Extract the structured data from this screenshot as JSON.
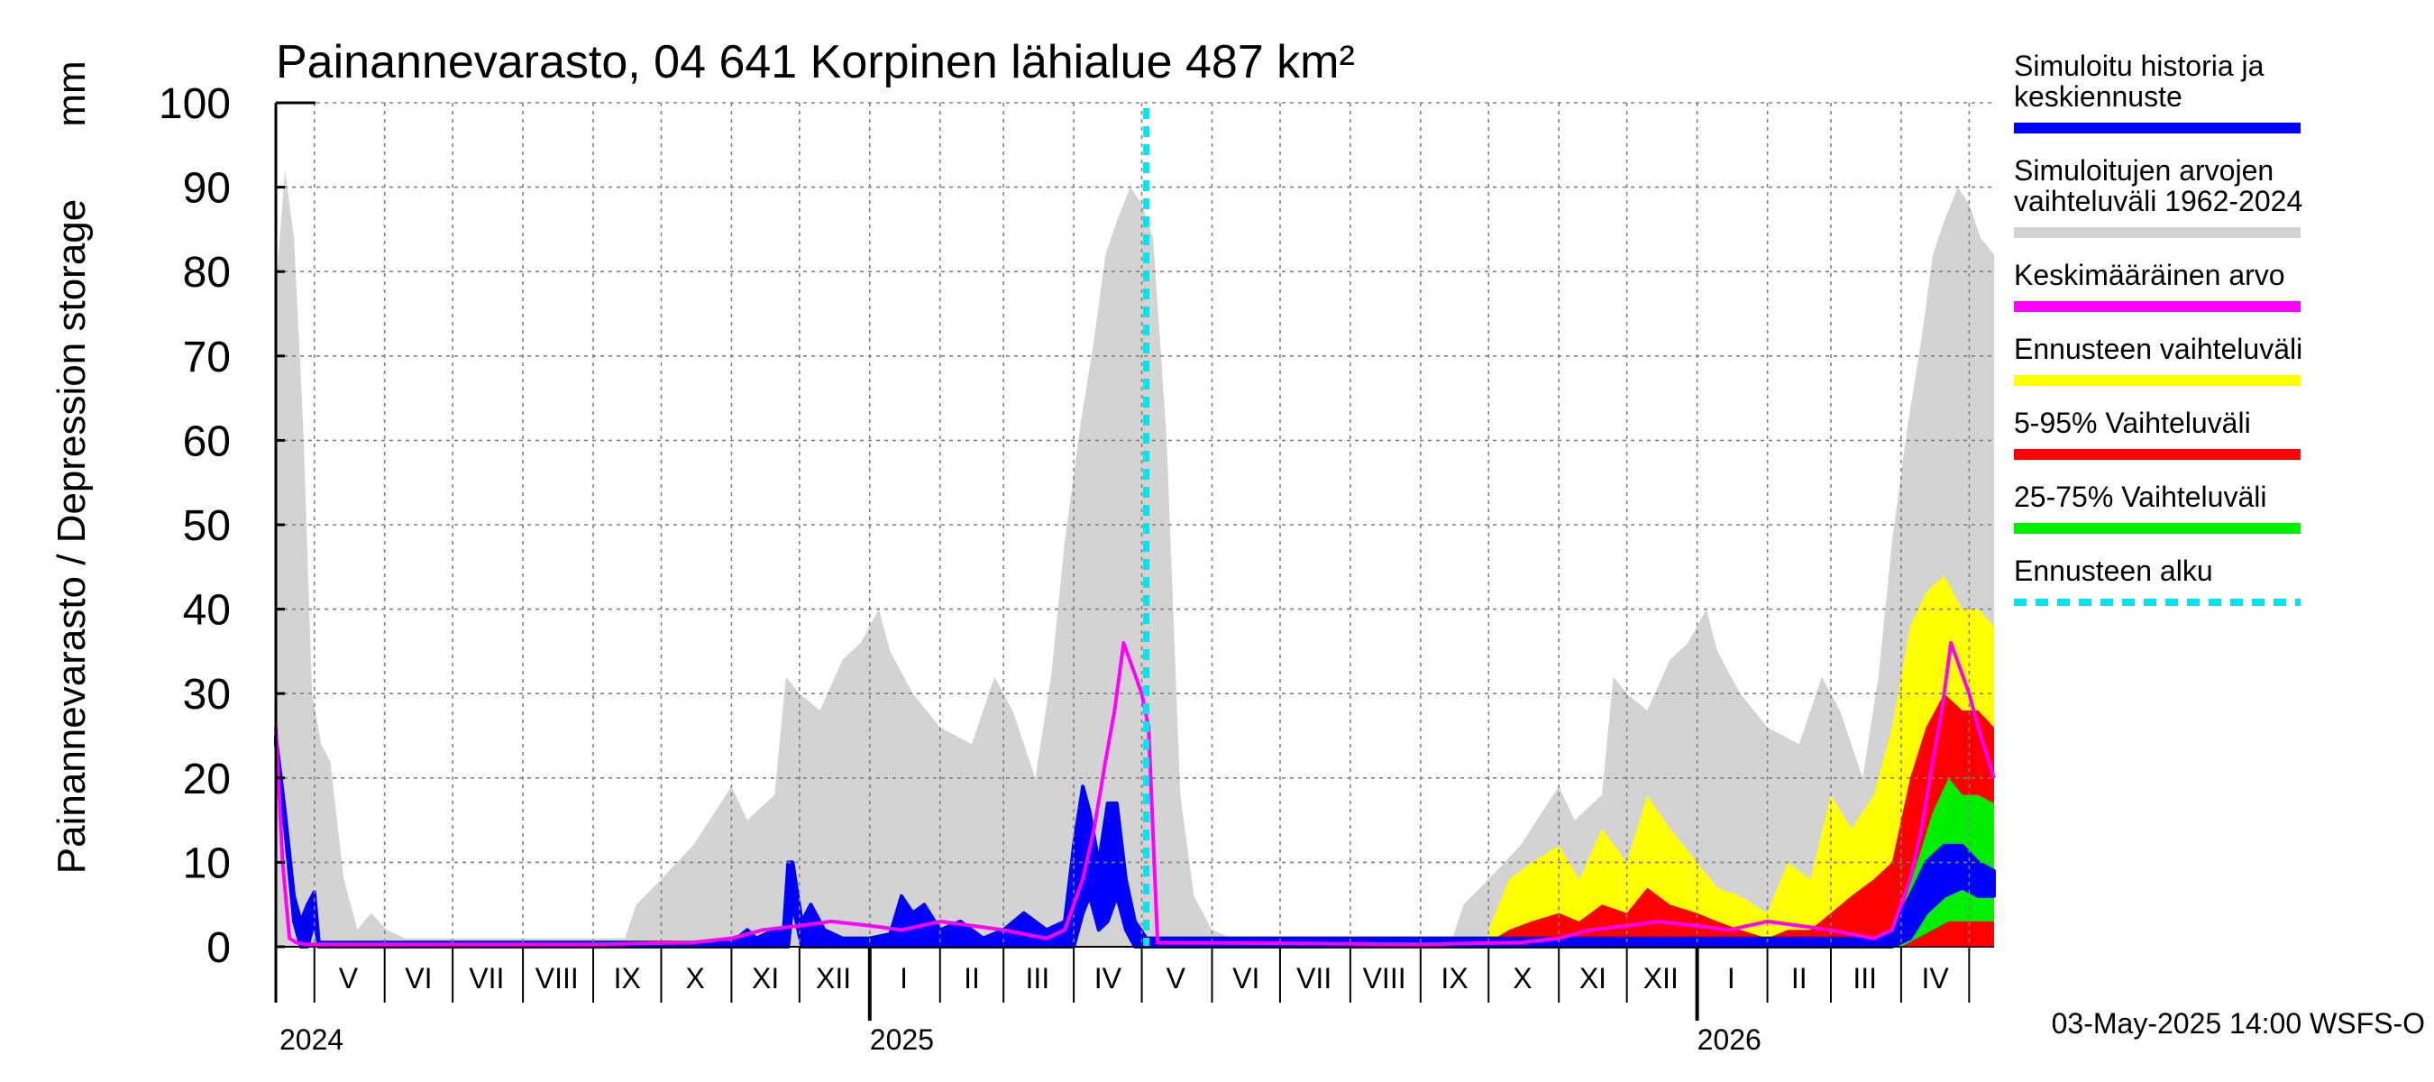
{
  "title": "Painannevarasto, 04 641 Korpinen lähialue 487 km²",
  "ylabel": "Painannevarasto / Depression storage",
  "yunit": "mm",
  "footer": "03-May-2025 14:00 WSFS-O",
  "legend": [
    {
      "lines": [
        "Simuloitu historia ja",
        "keskiennuste"
      ],
      "color": "#0000ff",
      "style": "solid"
    },
    {
      "lines": [
        "Simuloitujen arvojen",
        "vaihteluväli 1962-2024"
      ],
      "color": "#d3d3d3",
      "style": "solid"
    },
    {
      "lines": [
        "Keskimääräinen arvo"
      ],
      "color": "#ff00ff",
      "style": "solid"
    },
    {
      "lines": [
        "Ennusteen vaihteluväli"
      ],
      "color": "#ffff00",
      "style": "solid"
    },
    {
      "lines": [
        "5-95% Vaihteluväli"
      ],
      "color": "#ff0000",
      "style": "solid"
    },
    {
      "lines": [
        "25-75% Vaihteluväli"
      ],
      "color": "#00ee00",
      "style": "solid"
    },
    {
      "lines": [
        "Ennusteen alku"
      ],
      "color": "#00e5ee",
      "style": "dashed"
    }
  ],
  "chart_data": {
    "type": "area",
    "ylim": [
      0,
      100
    ],
    "yticks": [
      0,
      10,
      20,
      30,
      40,
      50,
      60,
      70,
      80,
      90,
      100
    ],
    "xlim": [
      "2024-04-14",
      "2026-05-12"
    ],
    "month_labels": [
      {
        "label": "V",
        "date": "2024-05-16"
      },
      {
        "label": "VI",
        "date": "2024-06-16"
      },
      {
        "label": "VII",
        "date": "2024-07-16"
      },
      {
        "label": "VIII",
        "date": "2024-08-16"
      },
      {
        "label": "IX",
        "date": "2024-09-16"
      },
      {
        "label": "X",
        "date": "2024-10-16"
      },
      {
        "label": "XI",
        "date": "2024-11-16"
      },
      {
        "label": "XII",
        "date": "2024-12-16"
      },
      {
        "label": "I",
        "date": "2025-01-16"
      },
      {
        "label": "II",
        "date": "2025-02-15"
      },
      {
        "label": "III",
        "date": "2025-03-16"
      },
      {
        "label": "IV",
        "date": "2025-04-16"
      },
      {
        "label": "V",
        "date": "2025-05-16"
      },
      {
        "label": "VI",
        "date": "2025-06-16"
      },
      {
        "label": "VII",
        "date": "2025-07-16"
      },
      {
        "label": "VIII",
        "date": "2025-08-16"
      },
      {
        "label": "IX",
        "date": "2025-09-16"
      },
      {
        "label": "X",
        "date": "2025-10-16"
      },
      {
        "label": "XI",
        "date": "2025-11-16"
      },
      {
        "label": "XII",
        "date": "2025-12-16"
      },
      {
        "label": "I",
        "date": "2026-01-16"
      },
      {
        "label": "II",
        "date": "2026-02-15"
      },
      {
        "label": "III",
        "date": "2026-03-16"
      },
      {
        "label": "IV",
        "date": "2026-04-16"
      }
    ],
    "month_boundaries": [
      "2024-05-01",
      "2024-06-01",
      "2024-07-01",
      "2024-08-01",
      "2024-09-01",
      "2024-10-01",
      "2024-11-01",
      "2024-12-01",
      "2025-01-01",
      "2025-02-01",
      "2025-03-01",
      "2025-04-01",
      "2025-05-01",
      "2025-06-01",
      "2025-07-01",
      "2025-08-01",
      "2025-09-01",
      "2025-10-01",
      "2025-11-01",
      "2025-12-01",
      "2026-01-01",
      "2026-02-01",
      "2026-03-01",
      "2026-04-01",
      "2026-05-01"
    ],
    "year_labels": [
      {
        "label": "2024",
        "date": "2024-04-14"
      },
      {
        "label": "2025",
        "date": "2025-01-01"
      },
      {
        "label": "2026",
        "date": "2026-01-01"
      }
    ],
    "forecast_start": "2025-05-03",
    "series": [
      {
        "name": "Simuloitujen arvojen vaihteluväli 1962-2024",
        "kind": "band",
        "color": "#d3d3d3",
        "x": [
          "2024-04-14",
          "2024-04-18",
          "2024-04-22",
          "2024-04-26",
          "2024-04-30",
          "2024-05-04",
          "2024-05-08",
          "2024-05-14",
          "2024-05-20",
          "2024-05-26",
          "2024-06-02",
          "2024-06-10",
          "2024-09-15",
          "2024-09-20",
          "2024-10-01",
          "2024-10-15",
          "2024-11-01",
          "2024-11-08",
          "2024-11-20",
          "2024-11-25",
          "2024-12-01",
          "2024-12-10",
          "2024-12-20",
          "2024-12-28",
          "2025-01-05",
          "2025-01-10",
          "2025-01-20",
          "2025-02-01",
          "2025-02-15",
          "2025-02-25",
          "2025-03-05",
          "2025-03-15",
          "2025-03-22",
          "2025-03-28",
          "2025-04-04",
          "2025-04-10",
          "2025-04-15",
          "2025-04-20",
          "2025-04-26",
          "2025-05-01",
          "2025-05-06",
          "2025-05-12",
          "2025-05-18",
          "2025-05-24",
          "2025-06-01",
          "2025-06-10",
          "2025-09-15",
          "2025-09-20",
          "2025-10-01",
          "2025-10-15",
          "2025-11-01",
          "2025-11-08",
          "2025-11-20",
          "2025-11-25",
          "2025-12-01",
          "2025-12-10",
          "2025-12-20",
          "2025-12-28",
          "2026-01-05",
          "2026-01-10",
          "2026-01-20",
          "2026-02-01",
          "2026-02-15",
          "2026-02-25",
          "2026-03-05",
          "2026-03-15",
          "2026-03-22",
          "2026-03-28",
          "2026-04-04",
          "2026-04-10",
          "2026-04-15",
          "2026-04-20",
          "2026-04-26",
          "2026-05-01",
          "2026-05-06",
          "2026-05-12"
        ],
        "upper": [
          78,
          92,
          84,
          62,
          30,
          24,
          22,
          8,
          2,
          4,
          2,
          1,
          1,
          5,
          8,
          12,
          19,
          15,
          18,
          32,
          30,
          28,
          34,
          36,
          40,
          35,
          30,
          26,
          24,
          32,
          28,
          20,
          32,
          48,
          62,
          72,
          82,
          86,
          90,
          88,
          84,
          60,
          18,
          6,
          2,
          1,
          1,
          5,
          8,
          12,
          19,
          15,
          18,
          32,
          30,
          28,
          34,
          36,
          40,
          35,
          30,
          26,
          24,
          32,
          28,
          20,
          32,
          48,
          62,
          72,
          82,
          86,
          90,
          88,
          84,
          82
        ],
        "lower": [
          0,
          0,
          0,
          0,
          0,
          0,
          0,
          0,
          0,
          0,
          0,
          0,
          0,
          0,
          0,
          0,
          0,
          0,
          0,
          0,
          0,
          0,
          0,
          0,
          0,
          0,
          0,
          0,
          0,
          0,
          0,
          0,
          0,
          0,
          0,
          0,
          0,
          0,
          0,
          0,
          0,
          0,
          0,
          0,
          0,
          0,
          0,
          0,
          0,
          0,
          0,
          0,
          0,
          0,
          0,
          0,
          0,
          0,
          0,
          0,
          0,
          0,
          0,
          0,
          0,
          0,
          0,
          0,
          0,
          0,
          0,
          0,
          0,
          0,
          0,
          0
        ]
      },
      {
        "name": "Ennusteen vaihteluväli",
        "kind": "band",
        "color": "#ffff00",
        "x": [
          "2025-10-01",
          "2025-10-10",
          "2025-10-20",
          "2025-11-01",
          "2025-11-10",
          "2025-11-20",
          "2025-12-01",
          "2025-12-10",
          "2025-12-20",
          "2026-01-01",
          "2026-01-10",
          "2026-01-20",
          "2026-02-01",
          "2026-02-10",
          "2026-02-20",
          "2026-03-01",
          "2026-03-10",
          "2026-03-20",
          "2026-03-28",
          "2026-04-05",
          "2026-04-12",
          "2026-04-20",
          "2026-04-28",
          "2026-05-05",
          "2026-05-12"
        ],
        "upper": [
          2,
          8,
          10,
          12,
          8,
          14,
          10,
          18,
          14,
          10,
          7,
          6,
          4,
          10,
          8,
          18,
          14,
          18,
          26,
          38,
          42,
          44,
          40,
          40,
          38
        ],
        "lower": [
          0,
          0,
          0,
          0,
          0,
          0,
          0,
          0,
          0,
          0,
          0,
          0,
          0,
          0,
          0,
          0,
          0,
          0,
          0,
          0,
          0,
          0,
          0,
          0,
          0
        ]
      },
      {
        "name": "5-95% Vaihteluväli",
        "kind": "band",
        "color": "#ff0000",
        "x": [
          "2025-10-01",
          "2025-10-10",
          "2025-10-20",
          "2025-11-01",
          "2025-11-10",
          "2025-11-20",
          "2025-12-01",
          "2025-12-10",
          "2025-12-20",
          "2026-01-01",
          "2026-01-10",
          "2026-01-20",
          "2026-02-01",
          "2026-02-10",
          "2026-02-20",
          "2026-03-01",
          "2026-03-10",
          "2026-03-20",
          "2026-03-28",
          "2026-04-05",
          "2026-04-12",
          "2026-04-20",
          "2026-04-28",
          "2026-05-05",
          "2026-05-12"
        ],
        "upper": [
          0.5,
          2,
          3,
          4,
          3,
          5,
          4,
          7,
          5,
          4,
          3,
          2,
          1,
          2,
          2,
          4,
          6,
          8,
          10,
          20,
          26,
          30,
          28,
          28,
          26
        ],
        "lower": [
          0,
          0,
          0,
          0,
          0,
          0,
          0,
          0,
          0,
          0,
          0,
          0,
          0,
          0,
          0,
          0,
          0,
          0,
          0,
          0,
          0,
          0,
          0,
          0,
          0
        ]
      },
      {
        "name": "25-75% Vaihteluväli",
        "kind": "band",
        "color": "#00ee00",
        "x": [
          "2026-03-25",
          "2026-04-01",
          "2026-04-08",
          "2026-04-15",
          "2026-04-22",
          "2026-04-28",
          "2026-05-05",
          "2026-05-12"
        ],
        "upper": [
          1,
          4,
          10,
          16,
          20,
          18,
          18,
          17
        ],
        "lower": [
          0,
          0,
          1,
          2,
          3,
          3,
          3,
          3
        ]
      },
      {
        "name": "Simuloitu historia ja keskiennuste",
        "kind": "band",
        "color": "#0000ff",
        "x": [
          "2024-04-14",
          "2024-04-18",
          "2024-04-22",
          "2024-04-25",
          "2024-04-28",
          "2024-05-01",
          "2024-05-03",
          "2024-05-06",
          "2024-05-10",
          "2024-11-01",
          "2024-11-08",
          "2024-11-12",
          "2024-11-20",
          "2024-11-24",
          "2024-11-26",
          "2024-11-28",
          "2024-12-02",
          "2024-12-06",
          "2024-12-12",
          "2024-12-20",
          "2025-01-01",
          "2025-01-10",
          "2025-01-15",
          "2025-01-20",
          "2025-01-25",
          "2025-02-01",
          "2025-02-10",
          "2025-02-20",
          "2025-03-01",
          "2025-03-10",
          "2025-03-20",
          "2025-03-28",
          "2025-04-01",
          "2025-04-05",
          "2025-04-08",
          "2025-04-12",
          "2025-04-16",
          "2025-04-20",
          "2025-04-24",
          "2025-04-28",
          "2025-05-03",
          "2025-10-01",
          "2025-11-01",
          "2026-03-01",
          "2026-03-20",
          "2026-03-28",
          "2026-04-05",
          "2026-04-12",
          "2026-04-20",
          "2026-04-28",
          "2026-05-05",
          "2026-05-12"
        ],
        "upper": [
          25,
          16,
          6,
          3,
          5,
          6.5,
          0.5,
          0.5,
          0.5,
          0.5,
          2,
          1,
          2,
          2,
          10,
          10,
          3,
          5,
          2,
          1,
          1,
          1.5,
          6,
          4,
          5,
          2,
          3,
          1,
          2,
          4,
          2,
          3,
          12,
          19,
          16,
          10,
          17,
          17,
          8,
          3,
          1,
          1,
          1,
          1,
          1,
          2,
          6,
          10,
          12,
          12,
          10,
          9
        ],
        "lower": [
          24,
          14,
          3,
          0,
          0,
          3,
          0,
          0,
          0,
          0,
          0,
          0,
          0,
          0,
          0,
          5,
          0,
          0,
          0,
          0,
          0,
          0,
          0,
          0,
          0,
          0,
          0,
          0,
          0,
          0,
          0,
          0,
          0,
          4,
          6,
          2,
          3,
          6,
          2,
          0,
          0,
          0,
          0,
          0,
          0,
          0,
          1,
          4,
          6,
          7,
          6,
          6
        ]
      },
      {
        "name": "Keskimääräinen arvo",
        "kind": "line",
        "color": "#ff00ff",
        "x": [
          "2024-04-14",
          "2024-04-17",
          "2024-04-20",
          "2024-04-23",
          "2024-04-27",
          "2024-09-01",
          "2024-10-15",
          "2024-11-01",
          "2024-11-15",
          "2024-12-01",
          "2024-12-15",
          "2025-01-01",
          "2025-01-15",
          "2025-02-01",
          "2025-02-15",
          "2025-03-01",
          "2025-03-20",
          "2025-03-28",
          "2025-04-05",
          "2025-04-10",
          "2025-04-15",
          "2025-04-19",
          "2025-04-23",
          "2025-04-27",
          "2025-05-01",
          "2025-05-04",
          "2025-05-08",
          "2025-09-01",
          "2025-10-15",
          "2025-11-01",
          "2025-11-15",
          "2025-12-01",
          "2025-12-15",
          "2026-01-01",
          "2026-01-15",
          "2026-02-01",
          "2026-02-15",
          "2026-03-01",
          "2026-03-20",
          "2026-03-28",
          "2026-04-05",
          "2026-04-10",
          "2026-04-15",
          "2026-04-19",
          "2026-04-23",
          "2026-04-27",
          "2026-05-01",
          "2026-05-05",
          "2026-05-12"
        ],
        "y": [
          26,
          10,
          1,
          0.5,
          0.3,
          0.3,
          0.5,
          1,
          2,
          2.5,
          3,
          2.5,
          2,
          3,
          2.5,
          2,
          1,
          2,
          8,
          14,
          22,
          28,
          36,
          33,
          30,
          26,
          0.5,
          0.3,
          0.5,
          1,
          2,
          2.5,
          3,
          2.5,
          2,
          3,
          2.5,
          2,
          1,
          2,
          8,
          14,
          22,
          28,
          36,
          33,
          30,
          26,
          20
        ]
      }
    ]
  }
}
